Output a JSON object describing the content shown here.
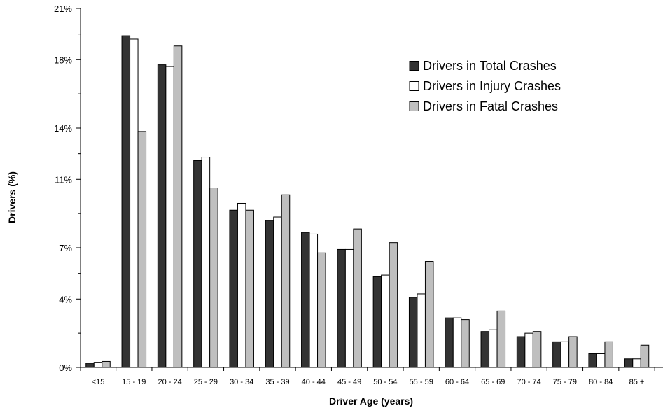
{
  "chart_data": {
    "type": "bar",
    "xlabel": "Driver Age (years)",
    "ylabel": "Drivers (%)",
    "ylim": [
      0,
      21
    ],
    "yticks": [
      0,
      4,
      7,
      11,
      14,
      18,
      21
    ],
    "ytick_labels": [
      "0%",
      "4%",
      "7%",
      "11%",
      "14%",
      "18%",
      "21%"
    ],
    "grid": false,
    "legend_position": "top-right",
    "categories": [
      "<15",
      "15 - 19",
      "20 - 24",
      "25 - 29",
      "30 - 34",
      "35 - 39",
      "40 - 44",
      "45 - 49",
      "50 - 54",
      "55 - 59",
      "60 - 64",
      "65 - 69",
      "70 - 74",
      "75 - 79",
      "80 - 84",
      "85 +"
    ],
    "series": [
      {
        "name": "Drivers in Total Crashes",
        "color": "#333333",
        "values": [
          0.25,
          19.4,
          17.7,
          12.1,
          9.2,
          8.6,
          7.9,
          6.9,
          5.3,
          4.1,
          2.9,
          2.1,
          1.8,
          1.5,
          0.8,
          0.5
        ]
      },
      {
        "name": "Drivers in Injury Crashes",
        "color": "#ffffff",
        "values": [
          0.3,
          19.2,
          17.6,
          12.3,
          9.6,
          8.8,
          7.8,
          6.9,
          5.4,
          4.3,
          2.9,
          2.2,
          2.0,
          1.5,
          0.8,
          0.5
        ]
      },
      {
        "name": "Drivers in Fatal Crashes",
        "color": "#bfbfbf",
        "values": [
          0.35,
          13.8,
          18.8,
          10.5,
          9.2,
          10.1,
          6.7,
          8.1,
          7.3,
          6.2,
          2.8,
          3.3,
          2.1,
          1.8,
          1.5,
          1.3
        ]
      }
    ]
  }
}
